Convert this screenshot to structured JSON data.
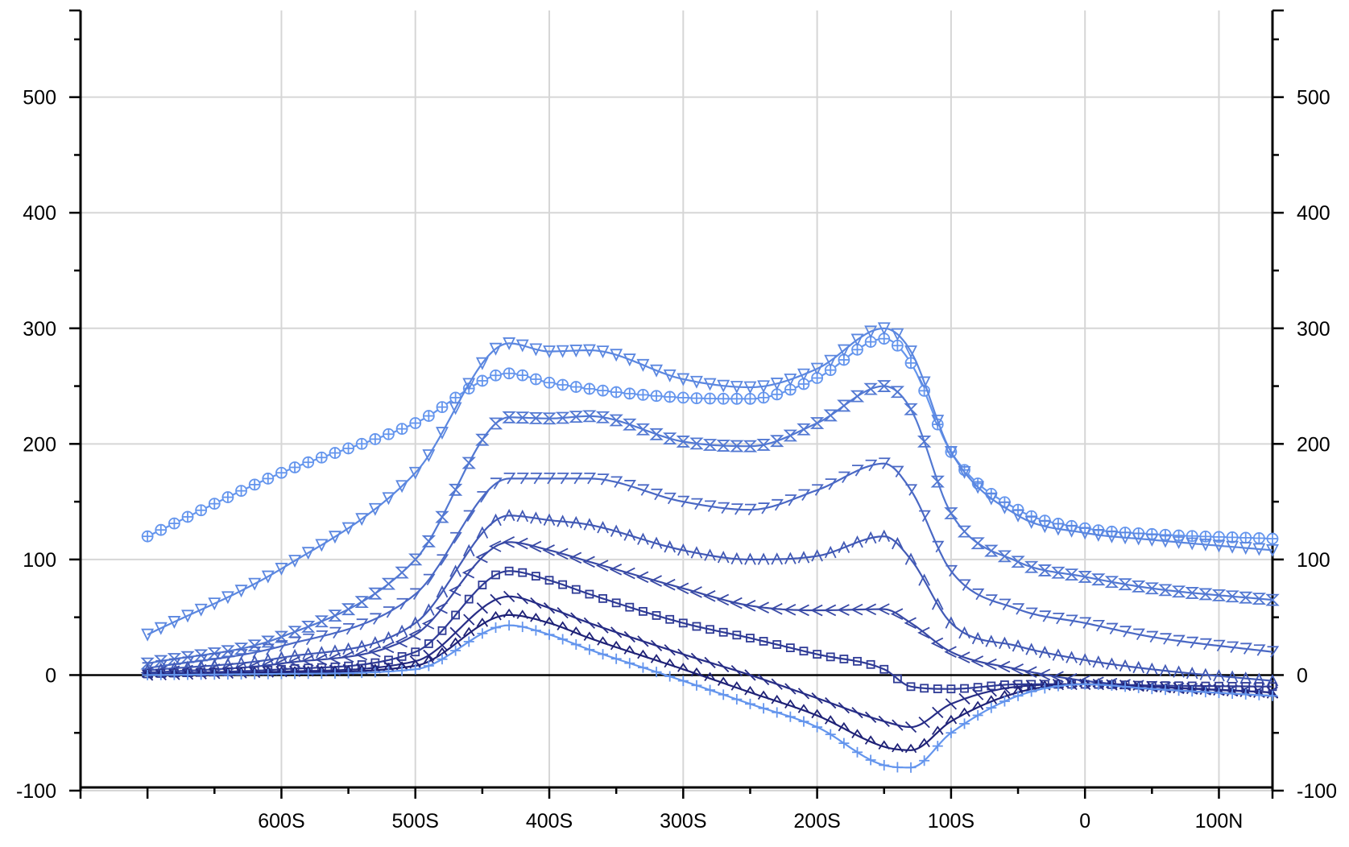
{
  "chart_data": {
    "type": "line",
    "title": "",
    "xlabel": "",
    "ylabel": "",
    "xlim": [
      -750,
      140
    ],
    "ylim": [
      -100,
      575
    ],
    "grid": true,
    "x_ticks": [
      {
        "value": -600,
        "label": "600S"
      },
      {
        "value": -500,
        "label": "500S"
      },
      {
        "value": -400,
        "label": "400S"
      },
      {
        "value": -300,
        "label": "300S"
      },
      {
        "value": -200,
        "label": "200S"
      },
      {
        "value": -100,
        "label": "100S"
      },
      {
        "value": 0,
        "label": "0"
      },
      {
        "value": 100,
        "label": "100N"
      }
    ],
    "y_ticks": [
      {
        "value": -100,
        "label": "-100"
      },
      {
        "value": 0,
        "label": "0"
      },
      {
        "value": 100,
        "label": "100"
      },
      {
        "value": 200,
        "label": "200"
      },
      {
        "value": 300,
        "label": "300"
      },
      {
        "value": 400,
        "label": "400"
      },
      {
        "value": 500,
        "label": "500"
      }
    ],
    "colors": [
      "#6495ed",
      "#5b87e0",
      "#5278d2",
      "#4a68c4",
      "#4159b5",
      "#3849a5",
      "#2f3b96",
      "#272d86",
      "#1f2277"
    ],
    "series": [
      {
        "marker": "circle-plus",
        "x": [
          -700,
          -600,
          -500,
          -430,
          -400,
          -300,
          -250,
          -200,
          -150,
          -130,
          -100,
          -50,
          0,
          50,
          140
        ],
        "values": [
          120,
          175,
          218,
          261,
          253,
          240,
          239,
          257,
          291,
          270,
          193,
          143,
          127,
          122,
          118
        ]
      },
      {
        "marker": "tri-down",
        "x": [
          -700,
          -600,
          -500,
          -430,
          -400,
          -370,
          -300,
          -250,
          -200,
          -150,
          -130,
          -100,
          -50,
          0,
          50,
          140
        ],
        "values": [
          35,
          92,
          175,
          287,
          280,
          281,
          256,
          249,
          265,
          300,
          280,
          193,
          138,
          123,
          117,
          108
        ]
      },
      {
        "marker": "hourglass",
        "x": [
          -700,
          -600,
          -500,
          -430,
          -400,
          -370,
          -300,
          -250,
          -200,
          -150,
          -130,
          -100,
          -50,
          0,
          50,
          140
        ],
        "values": [
          10,
          33,
          100,
          223,
          222,
          224,
          202,
          198,
          218,
          250,
          230,
          140,
          98,
          85,
          75,
          65
        ]
      },
      {
        "marker": "seven",
        "x": [
          -700,
          -600,
          -500,
          -430,
          -400,
          -370,
          -300,
          -250,
          -200,
          -150,
          -130,
          -100,
          -50,
          0,
          50,
          140
        ],
        "values": [
          6,
          25,
          70,
          170,
          170,
          170,
          150,
          143,
          160,
          183,
          160,
          90,
          57,
          45,
          33,
          20
        ]
      },
      {
        "marker": "wedge",
        "x": [
          -700,
          -600,
          -500,
          -430,
          -400,
          -370,
          -300,
          -250,
          -200,
          -150,
          -130,
          -100,
          -50,
          0,
          50,
          140
        ],
        "values": [
          4,
          15,
          45,
          138,
          134,
          130,
          108,
          100,
          103,
          120,
          100,
          45,
          25,
          13,
          5,
          -5
        ]
      },
      {
        "marker": "lt",
        "x": [
          -700,
          -600,
          -500,
          -430,
          -400,
          -370,
          -300,
          -250,
          -200,
          -150,
          -130,
          -100,
          -50,
          0,
          50,
          140
        ],
        "values": [
          2,
          10,
          35,
          115,
          108,
          98,
          75,
          60,
          56,
          57,
          45,
          20,
          5,
          -5,
          -10,
          -15
        ]
      },
      {
        "marker": "square",
        "x": [
          -700,
          -600,
          -500,
          -430,
          -400,
          -370,
          -300,
          -250,
          -200,
          -150,
          -130,
          -100,
          -50,
          0,
          50,
          140
        ],
        "values": [
          1,
          5,
          20,
          90,
          82,
          70,
          45,
          32,
          18,
          5,
          -10,
          -12,
          -8,
          -8,
          -9,
          -10
        ]
      },
      {
        "marker": "backslash",
        "x": [
          -700,
          -600,
          -500,
          -430,
          -400,
          -370,
          -300,
          -250,
          -200,
          -150,
          -130,
          -100,
          -50,
          0,
          50,
          140
        ],
        "values": [
          0,
          3,
          12,
          68,
          58,
          45,
          18,
          0,
          -20,
          -40,
          -45,
          -25,
          -10,
          -8,
          -10,
          -15
        ]
      },
      {
        "marker": "caret",
        "x": [
          -700,
          -600,
          -500,
          -430,
          -400,
          -370,
          -300,
          -250,
          -200,
          -150,
          -130,
          -100,
          -50,
          0,
          50,
          140
        ],
        "values": [
          0,
          2,
          8,
          52,
          45,
          32,
          5,
          -15,
          -35,
          -62,
          -65,
          -40,
          -15,
          -8,
          -12,
          -18
        ]
      },
      {
        "marker": "plus",
        "x": [
          -700,
          -600,
          -500,
          -430,
          -400,
          -370,
          -300,
          -250,
          -200,
          -150,
          -130,
          -100,
          -50,
          0,
          50,
          140
        ],
        "values": [
          0,
          1,
          5,
          43,
          35,
          22,
          -5,
          -25,
          -45,
          -78,
          -80,
          -50,
          -18,
          -8,
          -12,
          -18
        ]
      }
    ]
  }
}
